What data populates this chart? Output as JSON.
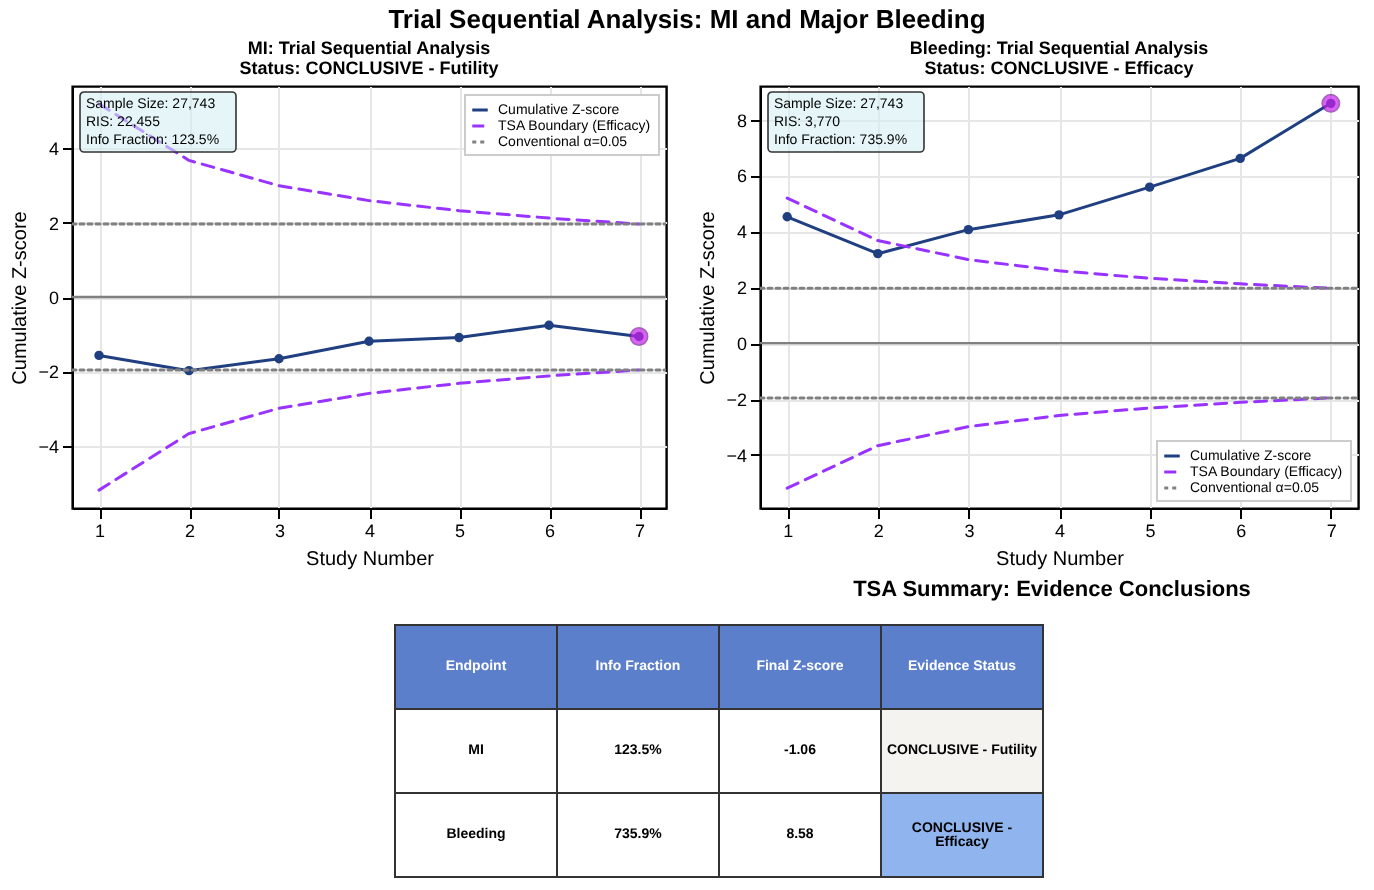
{
  "chart_data": [
    {
      "type": "other",
      "title": "Trial Sequential Analysis: MI and Major Bleeding"
    },
    {
      "type": "line",
      "title": "MI: Trial Sequential Analysis",
      "subtitle": "Status: CONCLUSIVE - Futility",
      "xlabel": "Study Number",
      "ylabel": "Cumulative Z-score",
      "x": [
        1,
        2,
        3,
        4,
        5,
        6,
        7
      ],
      "xlim": [
        0.7,
        7.3
      ],
      "xticks": [
        1,
        2,
        3,
        4,
        5,
        6,
        7
      ],
      "ylim": [
        -5.67,
        5.67
      ],
      "yticks": [
        -4,
        -2,
        0,
        2,
        4
      ],
      "grid": true,
      "legend": "top right",
      "annotations": [
        "Sample Size: 27,743",
        "RIS: 22,455",
        "Info Fraction: 123.5%"
      ],
      "series": [
        {
          "name": "Cumulative Z-score",
          "color": "#1f3f80",
          "marker": "circle",
          "line_style": "solid",
          "values": [
            -1.57,
            -1.98,
            -1.66,
            -1.19,
            -1.09,
            -0.76,
            -1.06
          ]
        },
        {
          "name": "TSA Boundary (Efficacy)",
          "color": "#9933ff",
          "marker": "none",
          "line_style": "dashed",
          "values": [
            5.19,
            3.67,
            2.99,
            2.59,
            2.32,
            2.12,
            1.96
          ]
        },
        {
          "color": "#9933ff",
          "marker": "none",
          "line_style": "dashed",
          "values": [
            -5.19,
            -3.67,
            -2.99,
            -2.59,
            -2.32,
            -2.12,
            -1.96
          ]
        },
        {
          "name": "Conventional α=0.05",
          "color": "#808080",
          "marker": "none",
          "line_style": "dotted",
          "x": [
            0.7,
            7.3
          ],
          "values": [
            1.96,
            1.96
          ]
        },
        {
          "color": "#808080",
          "marker": "none",
          "line_style": "dotted",
          "x": [
            0.7,
            7.3
          ],
          "values": [
            -1.96,
            -1.96
          ]
        },
        {
          "type": "scatter",
          "color": "#cc22ee",
          "marker": "circle",
          "x": [
            7
          ],
          "values": [
            -1.06
          ]
        }
      ],
      "ref_lines": [
        {
          "axis": "y",
          "value": 0,
          "color": "#808080",
          "line_style": "solid"
        }
      ]
    },
    {
      "type": "line",
      "title": "Bleeding: Trial Sequential Analysis",
      "subtitle": "Status: CONCLUSIVE - Efficacy",
      "xlabel": "Study Number",
      "ylabel": "Cumulative Z-score",
      "x": [
        1,
        2,
        3,
        4,
        5,
        6,
        7
      ],
      "xlim": [
        0.7,
        7.3
      ],
      "xticks": [
        1,
        2,
        3,
        4,
        5,
        6,
        7
      ],
      "ylim": [
        -5.9,
        9.2
      ],
      "yticks": [
        -4,
        -2,
        0,
        2,
        4,
        6,
        8
      ],
      "grid": true,
      "legend": "bottom right",
      "annotations": [
        "Sample Size: 27,743",
        "RIS: 3,770",
        "Info Fraction: 735.9%"
      ],
      "series": [
        {
          "name": "Cumulative Z-score",
          "color": "#1f3f80",
          "marker": "circle",
          "line_style": "solid",
          "values": [
            4.52,
            3.2,
            4.06,
            4.59,
            5.58,
            6.61,
            8.58
          ]
        },
        {
          "name": "TSA Boundary (Efficacy)",
          "color": "#9933ff",
          "marker": "none",
          "line_style": "dashed",
          "values": [
            5.19,
            3.67,
            2.99,
            2.59,
            2.32,
            2.12,
            1.96
          ]
        },
        {
          "color": "#9933ff",
          "marker": "none",
          "line_style": "dashed",
          "values": [
            -5.19,
            -3.67,
            -2.99,
            -2.59,
            -2.32,
            -2.12,
            -1.96
          ]
        },
        {
          "name": "Conventional α=0.05",
          "color": "#808080",
          "marker": "none",
          "line_style": "dotted",
          "x": [
            0.7,
            7.3
          ],
          "values": [
            1.96,
            1.96
          ]
        },
        {
          "color": "#808080",
          "marker": "none",
          "line_style": "dotted",
          "x": [
            0.7,
            7.3
          ],
          "values": [
            -1.96,
            -1.96
          ]
        },
        {
          "type": "scatter",
          "color": "#cc22ee",
          "marker": "circle",
          "x": [
            7
          ],
          "values": [
            8.58
          ]
        }
      ],
      "ref_lines": [
        {
          "axis": "y",
          "value": 0,
          "color": "#808080",
          "line_style": "solid"
        }
      ]
    },
    {
      "type": "other",
      "title": "TSA Summary: Evidence Conclusions",
      "categories": [
        "Endpoint",
        "Info Fraction",
        "Final Z-score",
        "Evidence Status"
      ],
      "color": "#5b7fcb",
      "cell_labels": [
        [
          "MI",
          "123.5%",
          "-1.06",
          "CONCLUSIVE - Futility"
        ],
        [
          "Bleeding",
          "735.9%",
          "8.58",
          "CONCLUSIVE - Efficacy"
        ]
      ]
    }
  ]
}
